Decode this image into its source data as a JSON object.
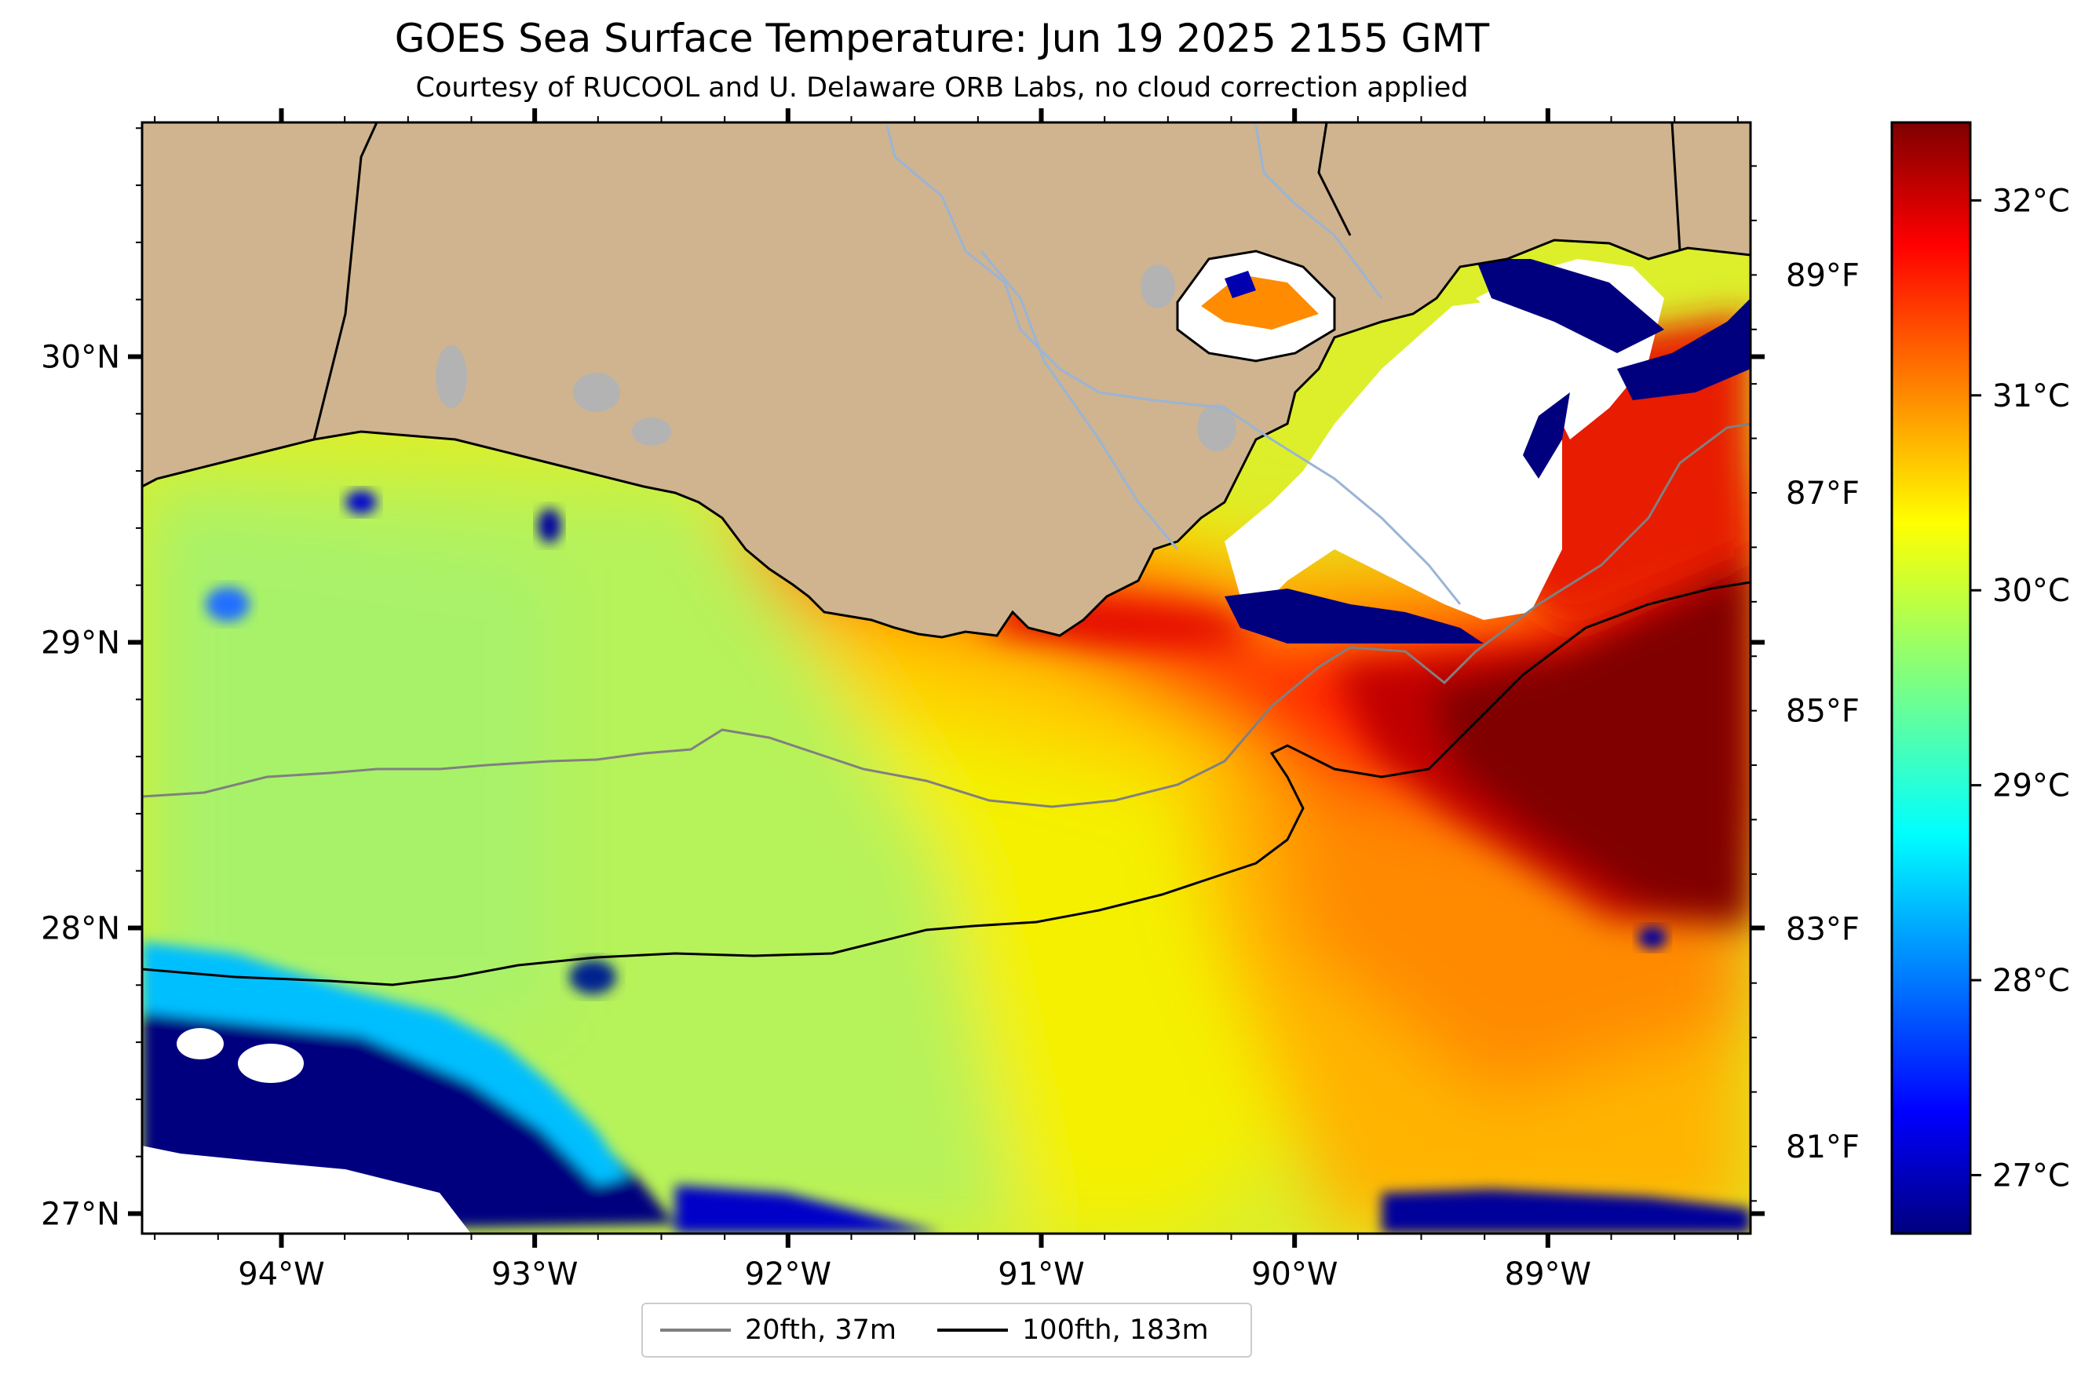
{
  "figure": {
    "title": "GOES Sea Surface Temperature: Jun 19 2025 2155 GMT",
    "subtitle": "Courtesy of RUCOOL and U. Delaware ORB Labs, no cloud correction applied"
  },
  "map": {
    "lon_range": [
      -94.55,
      -88.2
    ],
    "lat_range": [
      26.93,
      30.82
    ],
    "lon_ticks": [
      {
        "value": -94,
        "label": "94°W"
      },
      {
        "value": -93,
        "label": "93°W"
      },
      {
        "value": -92,
        "label": "92°W"
      },
      {
        "value": -91,
        "label": "91°W"
      },
      {
        "value": -90,
        "label": "90°W"
      },
      {
        "value": -89,
        "label": "89°W"
      }
    ],
    "lat_ticks": [
      {
        "value": 27,
        "label": "27°N"
      },
      {
        "value": 28,
        "label": "28°N"
      },
      {
        "value": 29,
        "label": "29°N"
      },
      {
        "value": 30,
        "label": "30°N"
      }
    ],
    "right_ticks": [
      {
        "value": 89,
        "label": "89°F"
      },
      {
        "value": 87,
        "label": "87°F"
      },
      {
        "value": 85,
        "label": "85°F"
      },
      {
        "value": 83,
        "label": "83°F"
      },
      {
        "value": 81,
        "label": "81°F"
      }
    ],
    "right_f_range": [
      80.2,
      90.4
    ],
    "colors": {
      "land": "#cfb48f",
      "land_outline": "#000000",
      "rivers": "#9ab4d6",
      "lakes": "#b3b3b3",
      "cloud": "#ffffff",
      "isobath_20fth": "#808080",
      "isobath_100fth": "#000000"
    }
  },
  "colorbar": {
    "cmap": "jet",
    "c_range": [
      26.7,
      32.4
    ],
    "ticks": [
      {
        "value": 27,
        "label": "27°C"
      },
      {
        "value": 28,
        "label": "28°C"
      },
      {
        "value": 29,
        "label": "29°C"
      },
      {
        "value": 30,
        "label": "30°C"
      },
      {
        "value": 31,
        "label": "31°C"
      },
      {
        "value": 32,
        "label": "32°C"
      }
    ]
  },
  "legend": {
    "items": [
      {
        "label": "20fth, 37m",
        "color": "#808080"
      },
      {
        "label": "100fth, 183m",
        "color": "#000000"
      }
    ]
  }
}
